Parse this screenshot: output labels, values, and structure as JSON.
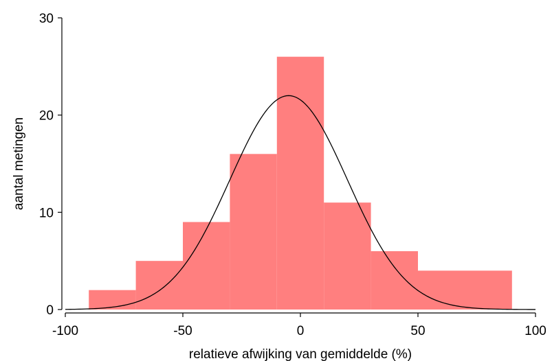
{
  "chart_data": {
    "type": "bar",
    "subtype": "histogram",
    "bins": [
      {
        "x0": -90,
        "x1": -70,
        "count": 2
      },
      {
        "x0": -70,
        "x1": -50,
        "count": 5
      },
      {
        "x0": -50,
        "x1": -30,
        "count": 9
      },
      {
        "x0": -30,
        "x1": -10,
        "count": 16
      },
      {
        "x0": -10,
        "x1": 10,
        "count": 26
      },
      {
        "x0": 10,
        "x1": 30,
        "count": 11
      },
      {
        "x0": 30,
        "x1": 50,
        "count": 6
      },
      {
        "x0": 50,
        "x1": 90,
        "count": 4
      }
    ],
    "normal_curve": {
      "mean": -5,
      "sd": 25,
      "peak": 22
    },
    "bar_color": "#FF7F7F",
    "curve_color": "#000000",
    "xlabel": "relatieve afwijking van gemiddelde (%)",
    "ylabel": "aantal metingen",
    "xlim": [
      -100,
      100
    ],
    "ylim": [
      0,
      30
    ],
    "xticks": [
      -100,
      -50,
      0,
      50,
      100
    ],
    "yticks": [
      0,
      10,
      20,
      30
    ],
    "grid": false
  }
}
